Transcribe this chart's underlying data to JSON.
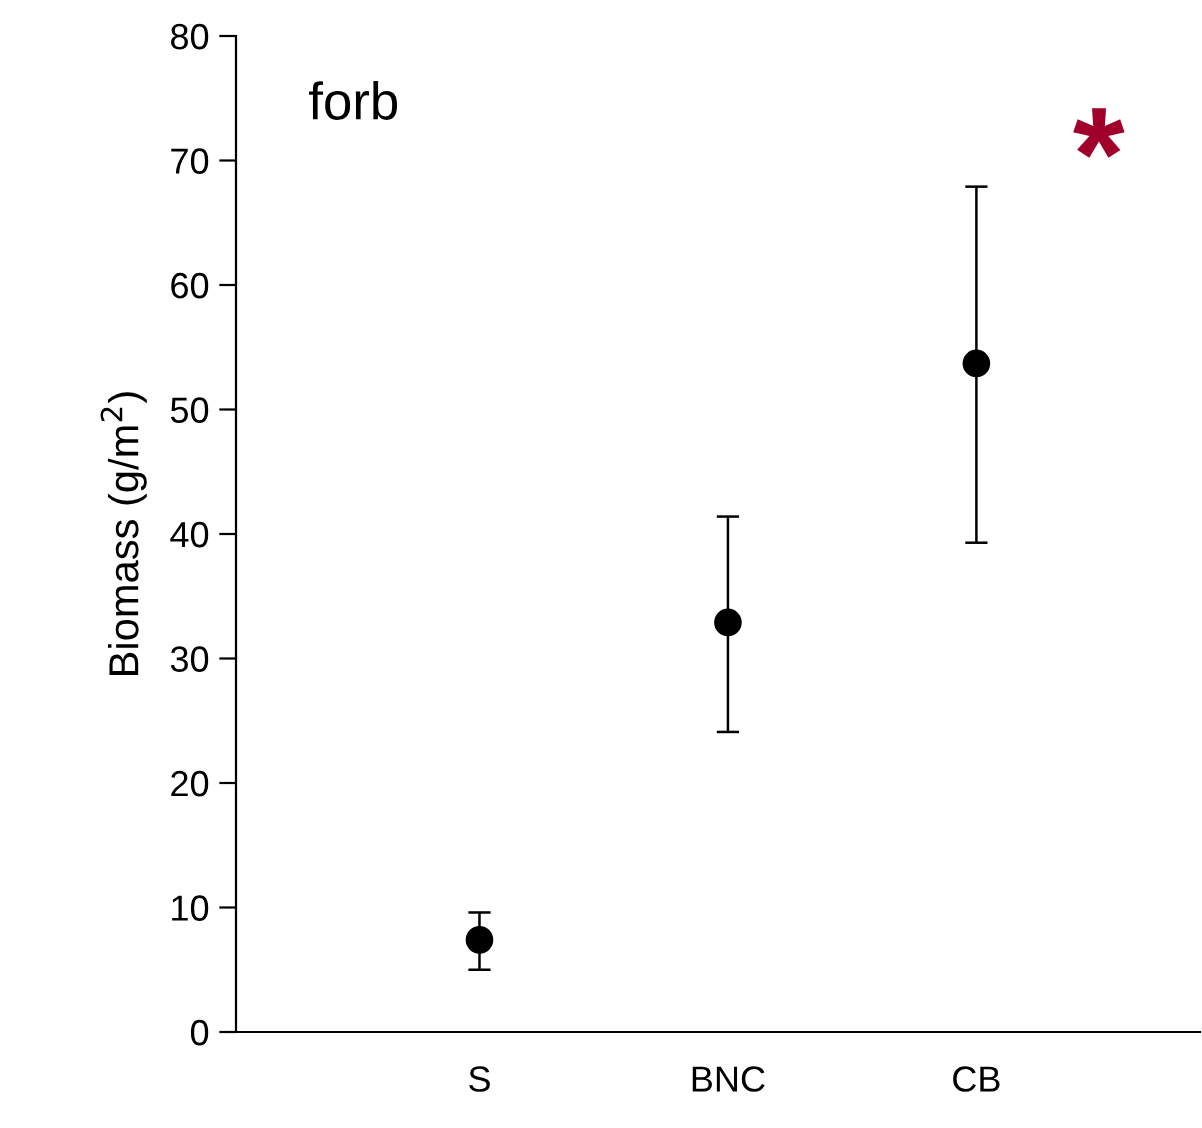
{
  "chart_data": {
    "type": "scatter",
    "ylabel": "Biomass (g/m$^{2}$)",
    "categories": [
      "S",
      "BNC",
      "CB"
    ],
    "values": [
      7.4,
      32.9,
      53.7
    ],
    "errors": [
      [
        5.0,
        9.6
      ],
      [
        24.1,
        41.4
      ],
      [
        39.3,
        67.9
      ]
    ],
    "color": "#000000",
    "marker": "circle",
    "ylim": [
      0,
      80
    ],
    "yticks": [
      0,
      10,
      20,
      30,
      40,
      50,
      60,
      70,
      80
    ],
    "grid": false,
    "annotations": [
      "forb",
      "*"
    ]
  }
}
